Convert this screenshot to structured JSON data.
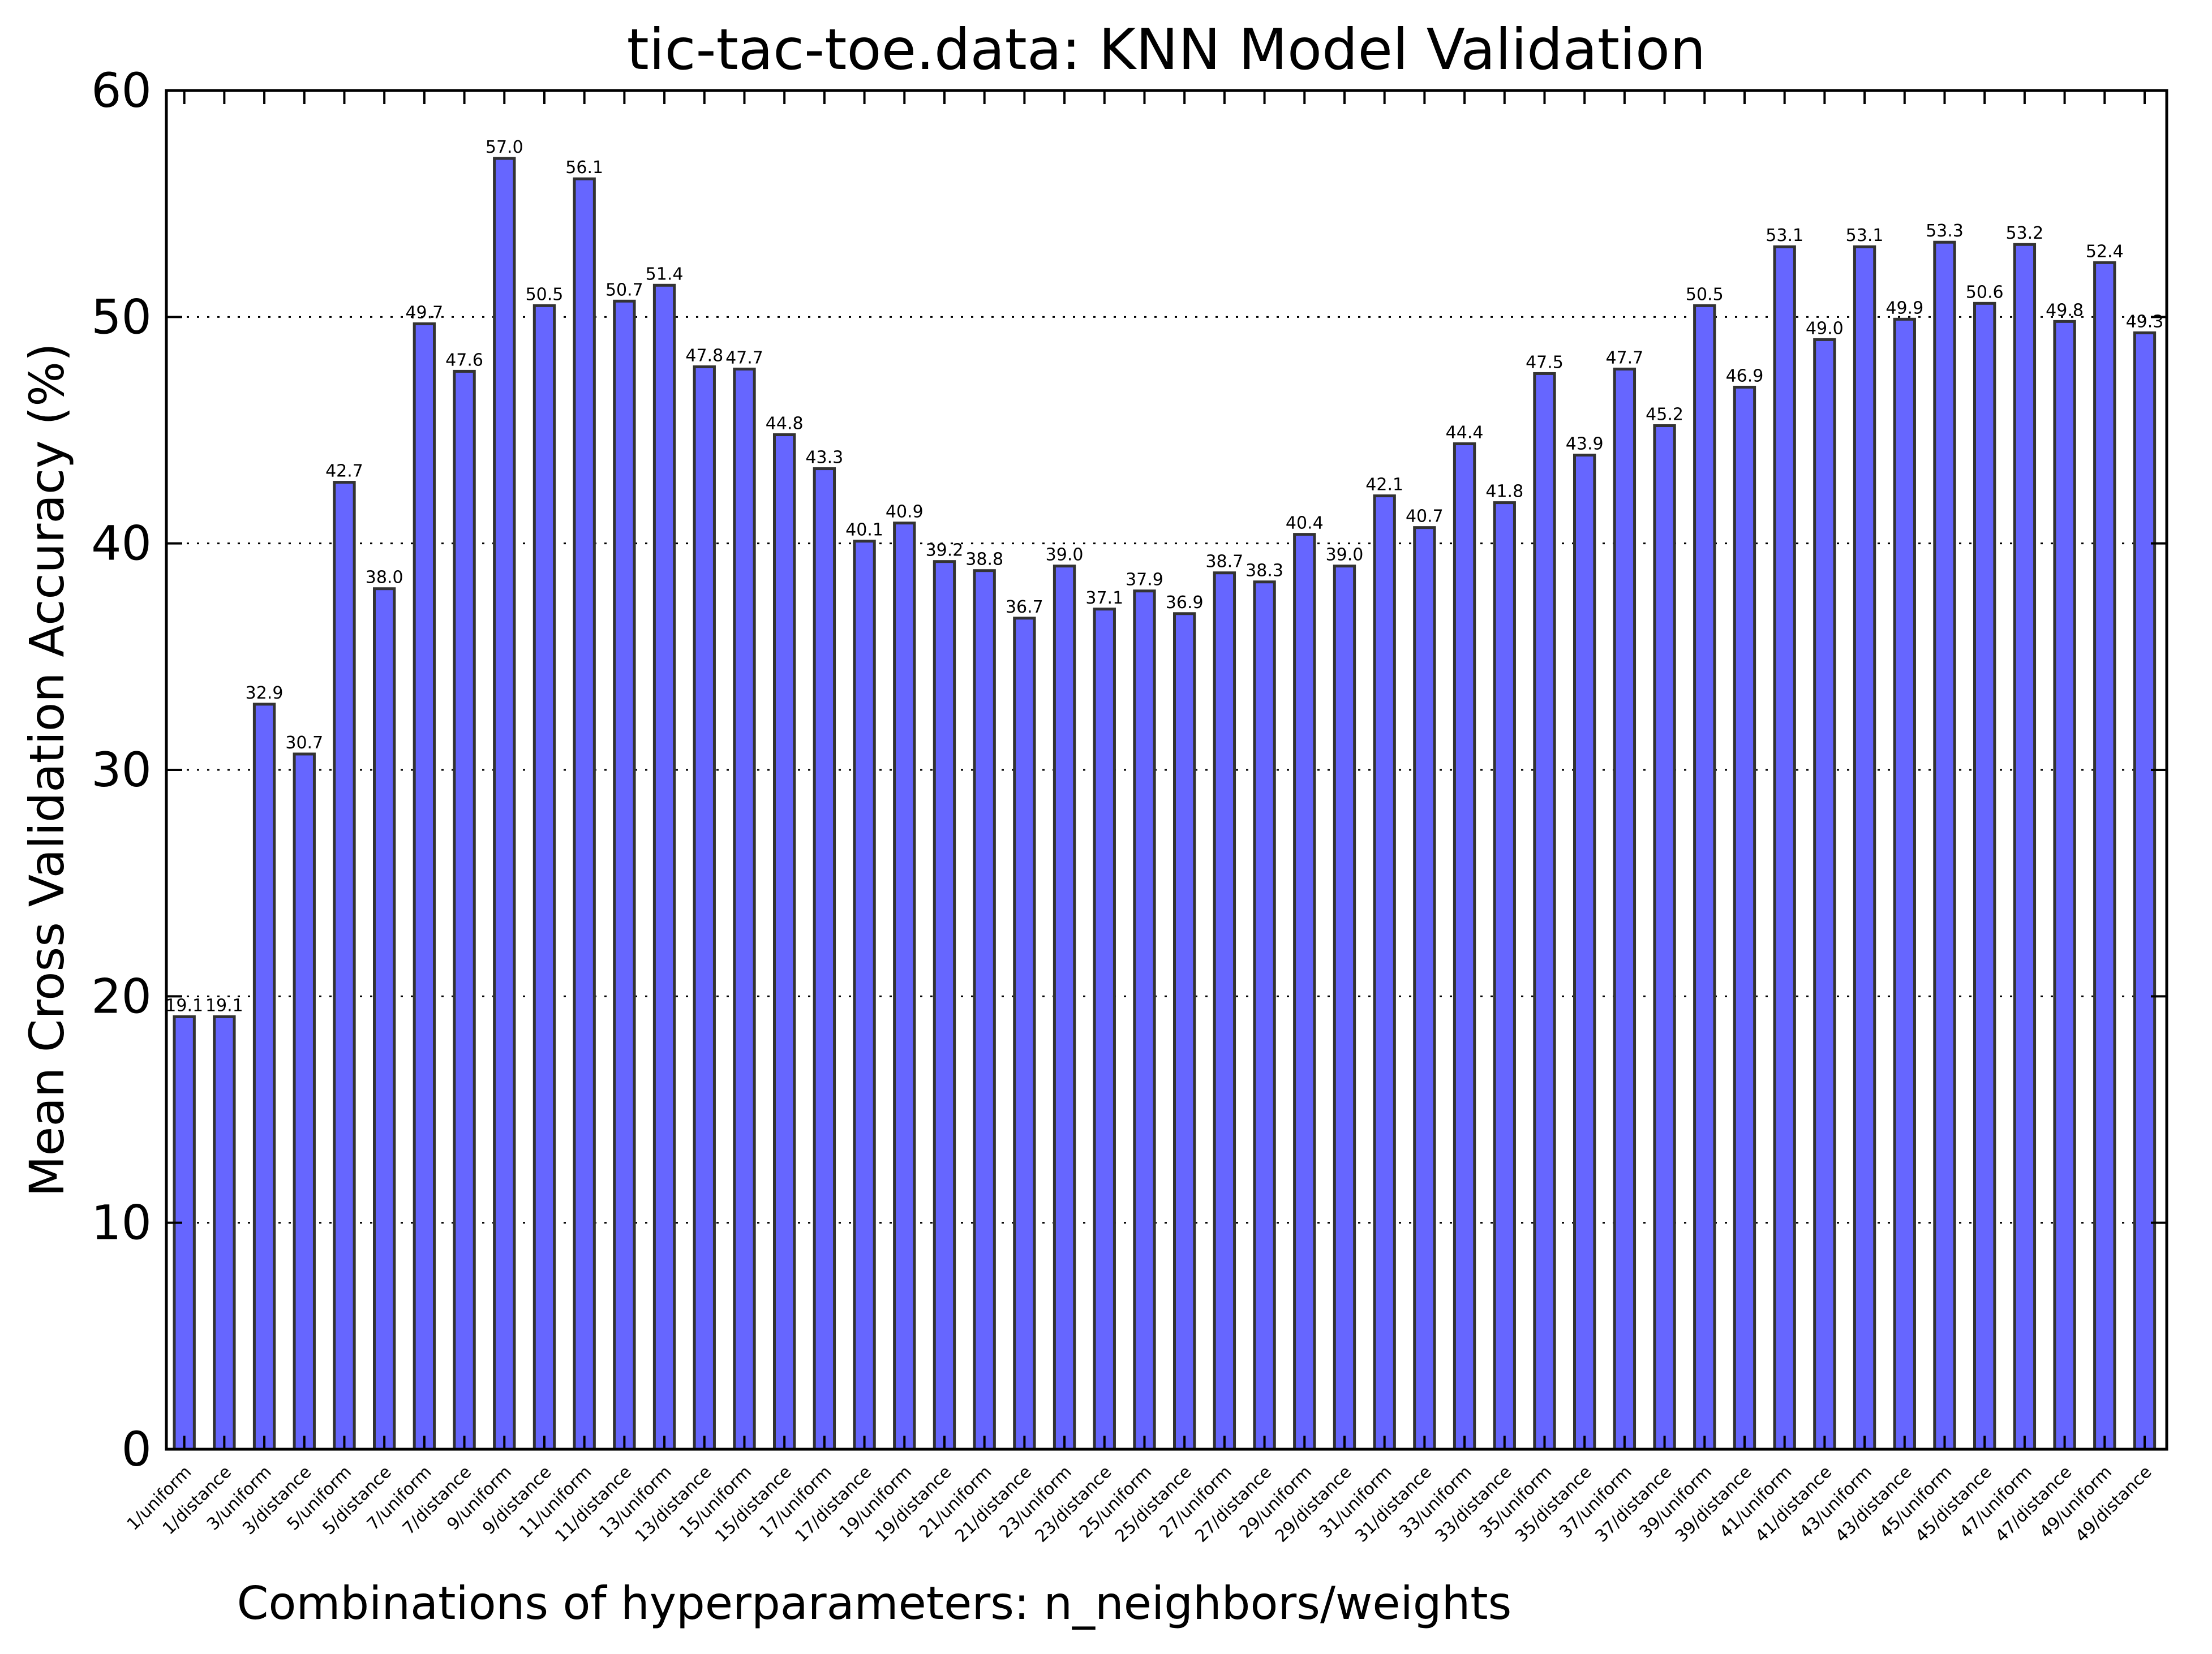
{
  "chart_data": {
    "type": "bar",
    "title": "tic-tac-toe.data: KNN Model Validation",
    "xlabel": "Combinations of hyperparameters: n_neighbors/weights",
    "ylabel": "Mean Cross Validation Accuracy (%)",
    "ylim": [
      0,
      60
    ],
    "yticks": [
      "0",
      "10",
      "20",
      "30",
      "40",
      "50",
      "60"
    ],
    "grid": "horizontal dotted",
    "bar_color": "#6666ff",
    "categories": [
      "1/uniform",
      "1/distance",
      "3/uniform",
      "3/distance",
      "5/uniform",
      "5/distance",
      "7/uniform",
      "7/distance",
      "9/uniform",
      "9/distance",
      "11/uniform",
      "11/distance",
      "13/uniform",
      "13/distance",
      "15/uniform",
      "15/distance",
      "17/uniform",
      "17/distance",
      "19/uniform",
      "19/distance",
      "21/uniform",
      "21/distance",
      "23/uniform",
      "23/distance",
      "25/uniform",
      "25/distance",
      "27/uniform",
      "27/distance",
      "29/uniform",
      "29/distance",
      "31/uniform",
      "31/distance",
      "33/uniform",
      "33/distance",
      "35/uniform",
      "35/distance",
      "37/uniform",
      "37/distance",
      "39/uniform",
      "39/distance",
      "41/uniform",
      "41/distance",
      "43/uniform",
      "43/distance",
      "45/uniform",
      "45/distance",
      "47/uniform",
      "47/distance",
      "49/uniform",
      "49/distance"
    ],
    "values": [
      19.1,
      19.1,
      32.9,
      30.7,
      42.7,
      38.0,
      49.7,
      47.6,
      57.0,
      50.5,
      56.1,
      50.7,
      51.4,
      47.8,
      47.7,
      44.8,
      43.3,
      40.1,
      40.9,
      39.2,
      38.8,
      36.7,
      39.0,
      37.1,
      37.9,
      36.9,
      38.7,
      38.3,
      40.4,
      39.0,
      42.1,
      40.7,
      44.4,
      41.8,
      47.5,
      43.9,
      47.7,
      45.2,
      50.5,
      46.9,
      53.1,
      49.0,
      53.1,
      49.9,
      53.3,
      50.6,
      53.2,
      49.8,
      52.4,
      49.3
    ],
    "data_labels": [
      "19.1",
      "19.1",
      "32.9",
      "30.7",
      "42.7",
      "38.0",
      "49.7",
      "47.6",
      "57.0",
      "50.5",
      "56.1",
      "50.7",
      "51.4",
      "47.8",
      "47.7",
      "44.8",
      "43.3",
      "40.1",
      "40.9",
      "39.2",
      "38.8",
      "36.7",
      "39.0",
      "37.1",
      "37.9",
      "36.9",
      "38.7",
      "38.3",
      "40.4",
      "39.0",
      "42.1",
      "40.7",
      "44.4",
      "41.8",
      "47.5",
      "43.9",
      "47.7",
      "45.2",
      "50.5",
      "46.9",
      "53.1",
      "49.0",
      "53.1",
      "49.9",
      "53.3",
      "50.6",
      "53.2",
      "49.8",
      "52.4",
      "49.3"
    ]
  }
}
